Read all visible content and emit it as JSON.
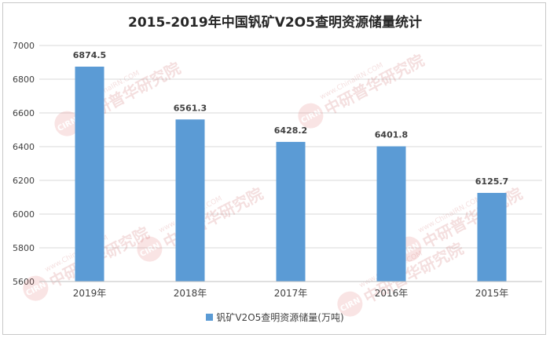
{
  "chart_data": {
    "type": "bar",
    "title": "2015-2019年中国钒矿V2O5查明资源储量统计",
    "categories": [
      "2019年",
      "2018年",
      "2017年",
      "2016年",
      "2015年"
    ],
    "series": [
      {
        "name": "钒矿V2O5查明资源储量(万吨)",
        "values": [
          6874.5,
          6561.3,
          6428.2,
          6401.8,
          6125.7
        ]
      }
    ],
    "value_labels": [
      "6874.5",
      "6561.3",
      "6428.2",
      "6401.8",
      "6125.7"
    ],
    "ylim": [
      5600,
      7000
    ],
    "yticks": [
      "5600",
      "5800",
      "6000",
      "6200",
      "6400",
      "6600",
      "6800",
      "7000"
    ],
    "grid": true,
    "legend_position": "bottom",
    "bar_color": "#5b9bd5"
  },
  "watermark": {
    "text": "中研普华研究院",
    "site": "www.ChinaIRN.COM",
    "badge": "CIRN"
  }
}
